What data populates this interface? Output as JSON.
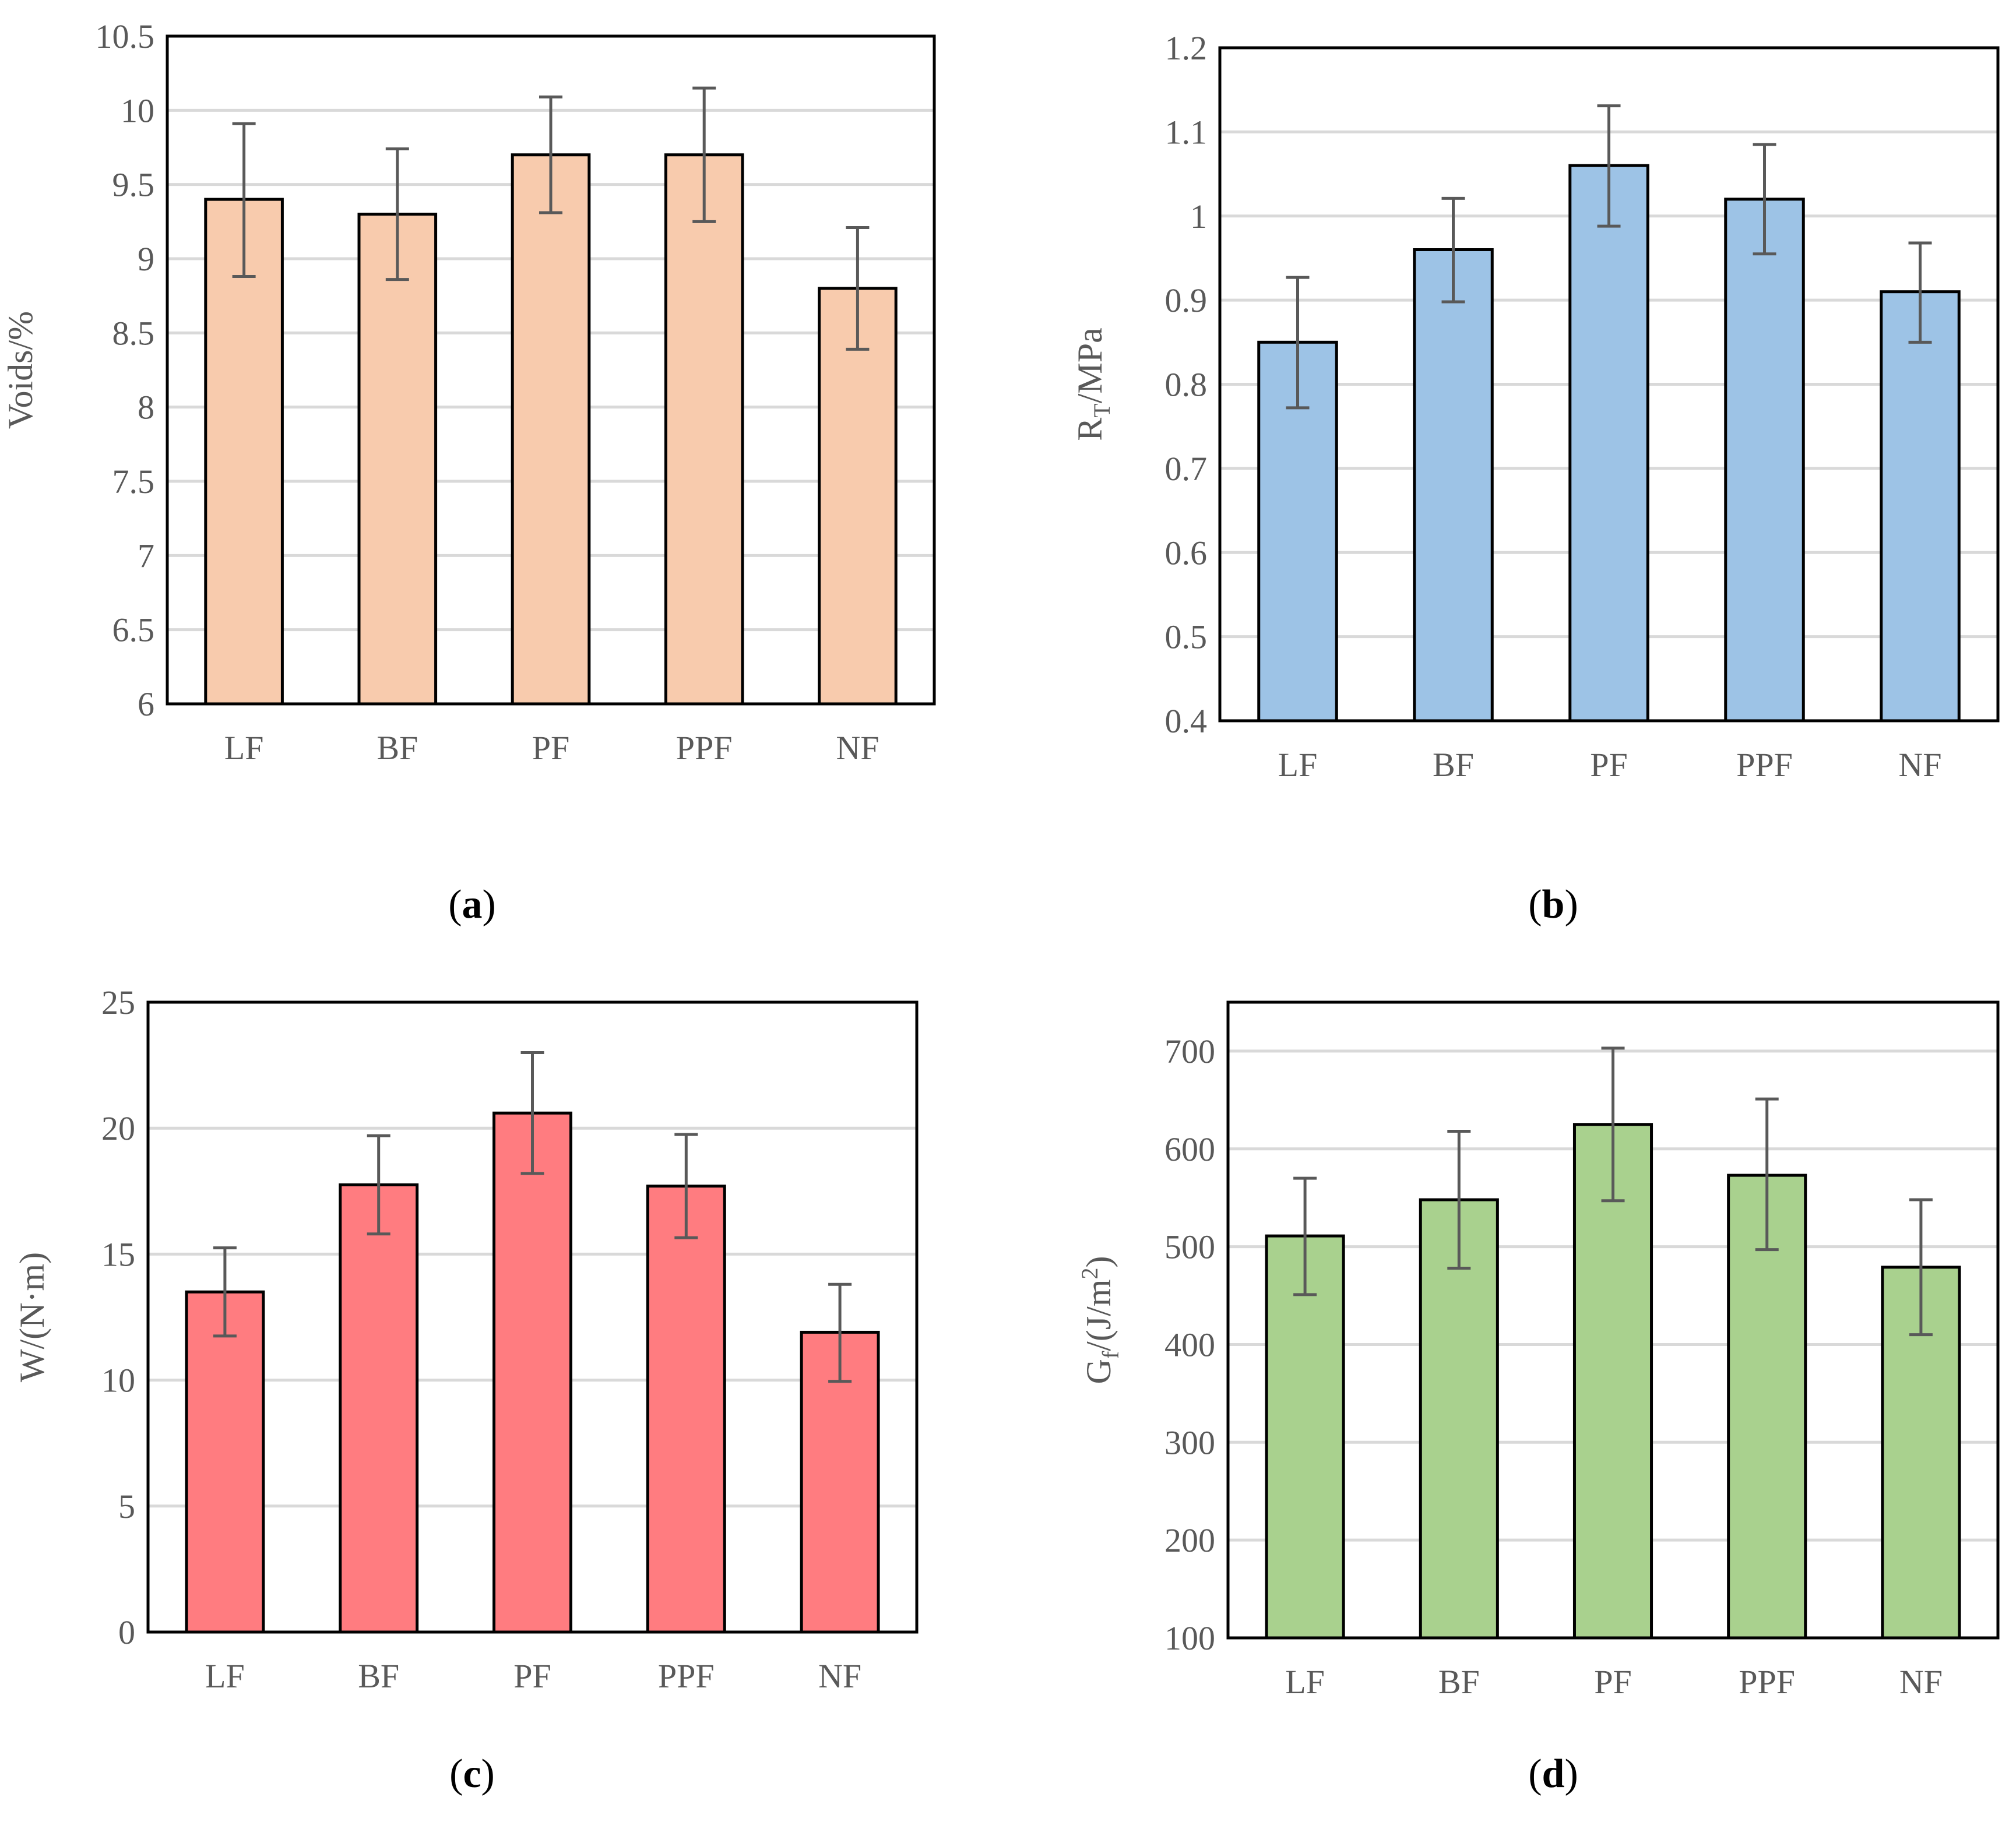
{
  "chart_data": [
    {
      "id": "a",
      "type": "bar",
      "caption_letter": "a",
      "categories": [
        "LF",
        "BF",
        "PF",
        "PPF",
        "NF"
      ],
      "values": [
        9.4,
        9.3,
        9.7,
        9.7,
        8.8
      ],
      "error_low": [
        8.88,
        8.86,
        9.31,
        9.25,
        8.39
      ],
      "error_high": [
        9.91,
        9.74,
        10.09,
        10.15,
        9.21
      ],
      "ylabel": "Voids/%",
      "ylim": [
        6,
        10.5
      ],
      "yticks": [
        6,
        6.5,
        7,
        7.5,
        8,
        8.5,
        9,
        9.5,
        10,
        10.5
      ],
      "ytick_labels": [
        "6",
        "6.5",
        "7",
        "7.5",
        "8",
        "8.5",
        "9",
        "9.5",
        "10",
        "10.5"
      ],
      "grid": true,
      "bar_color": "#F8CBAD"
    },
    {
      "id": "b",
      "type": "bar",
      "caption_letter": "b",
      "categories": [
        "LF",
        "BF",
        "PF",
        "PPF",
        "NF"
      ],
      "values": [
        0.85,
        0.96,
        1.06,
        1.02,
        0.91
      ],
      "error_low": [
        0.772,
        0.898,
        0.988,
        0.955,
        0.85
      ],
      "error_high": [
        0.927,
        1.021,
        1.131,
        1.085,
        0.968
      ],
      "ylabel": {
        "base": "R",
        "sub": "T",
        "suffix": "/MPa"
      },
      "ylim": [
        0.4,
        1.2
      ],
      "yticks": [
        0.4,
        0.5,
        0.6,
        0.7,
        0.8,
        0.9,
        1.0,
        1.1,
        1.2
      ],
      "ytick_labels": [
        "0.4",
        "0.5",
        "0.6",
        "0.7",
        "0.8",
        "0.9",
        "1",
        "1.1",
        "1.2"
      ],
      "grid": true,
      "bar_color": "#9DC3E6"
    },
    {
      "id": "c",
      "type": "bar",
      "caption_letter": "c",
      "categories": [
        "LF",
        "BF",
        "PF",
        "PPF",
        "NF"
      ],
      "values": [
        13.5,
        17.75,
        20.6,
        17.7,
        11.9
      ],
      "error_low": [
        11.75,
        15.8,
        18.2,
        15.65,
        9.95
      ],
      "error_high": [
        15.25,
        19.7,
        23.0,
        19.75,
        13.8
      ],
      "ylabel": "W/(N·m)",
      "ylim": [
        0,
        25
      ],
      "yticks": [
        0,
        5,
        10,
        15,
        20,
        25
      ],
      "ytick_labels": [
        "0",
        "5",
        "10",
        "15",
        "20",
        "25"
      ],
      "grid": true,
      "bar_color": "#FF7C80"
    },
    {
      "id": "d",
      "type": "bar",
      "caption_letter": "d",
      "categories": [
        "LF",
        "BF",
        "PF",
        "PPF",
        "NF"
      ],
      "values": [
        511,
        548,
        625,
        573,
        479
      ],
      "error_low": [
        451,
        478,
        547,
        497,
        410
      ],
      "error_high": [
        570,
        618,
        703,
        651,
        548
      ],
      "ylabel": {
        "base": "G",
        "sub": "f",
        "mid": "/(J/m",
        "sup": "2",
        "suffix": ")"
      },
      "ylim": [
        100,
        750
      ],
      "yticks": [
        100,
        200,
        300,
        400,
        500,
        600,
        700
      ],
      "ytick_labels": [
        "100",
        "200",
        "300",
        "400",
        "500",
        "600",
        "700"
      ],
      "grid": true,
      "bar_color": "#A9D18E"
    }
  ],
  "colors": {
    "axis": "#000000",
    "grid": "#D9D9D9",
    "error_bar": "#595959",
    "text": "#595959"
  }
}
